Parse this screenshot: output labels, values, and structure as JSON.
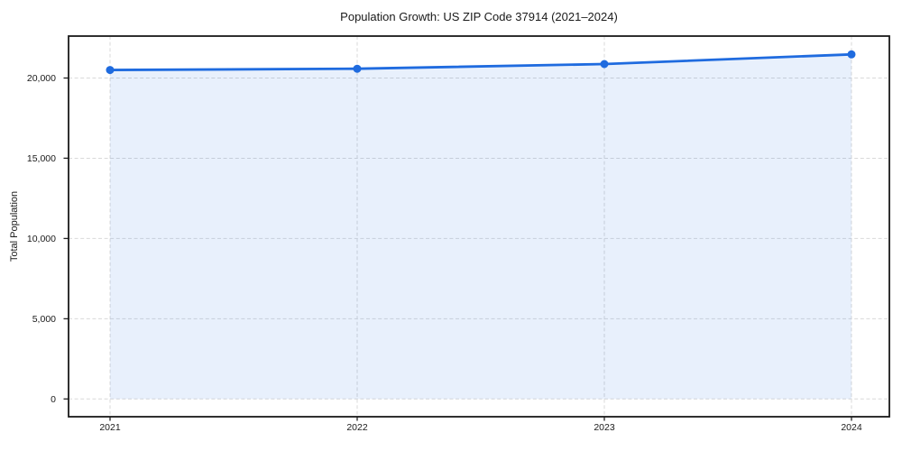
{
  "chart_data": {
    "type": "area",
    "title": "Population Growth: US ZIP Code 37914 (2021–2024)",
    "xlabel": "",
    "ylabel": "Total Population",
    "x": [
      2021,
      2022,
      2023,
      2024
    ],
    "xtick_labels": [
      "2021",
      "2022",
      "2023",
      "2024"
    ],
    "series": [
      {
        "name": "Total Population",
        "values": [
          20500,
          20580,
          20870,
          21470
        ]
      }
    ],
    "yticks": [
      0,
      5000,
      10000,
      15000,
      20000
    ],
    "ytick_labels": [
      "0",
      "5,000",
      "10,000",
      "15,000",
      "20,000"
    ],
    "ylim": [
      -1100,
      22600
    ],
    "xlim": [
      2020.85,
      2024.15
    ],
    "grid": true,
    "grid_style": "dashed",
    "legend": false,
    "colors": {
      "line": "#1f6bdf",
      "marker": "#1f6bdf",
      "fill": "rgba(31,107,223,0.10)",
      "grid": "#d9d9d9",
      "spine": "#1a1a1a",
      "tick": "#222222",
      "text": "#1a1a1a",
      "background": "#ffffff"
    }
  }
}
